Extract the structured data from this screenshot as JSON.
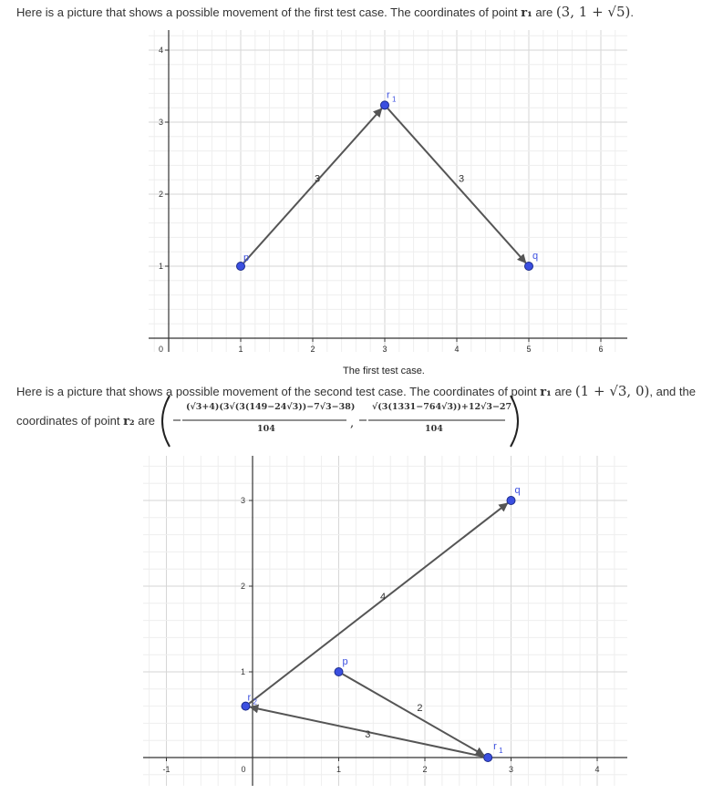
{
  "para1": {
    "text": "Here is a picture that shows a possible movement of the first test case. The coordinates of point ",
    "var": "r₁",
    "mid": " are ",
    "coords": "(3, 1 + √5)",
    "end": "."
  },
  "figure1": {
    "caption": "The first test case.",
    "x_ticks": [
      "1",
      "2",
      "3",
      "4",
      "5",
      "6"
    ],
    "y_ticks": [
      "1",
      "2",
      "3",
      "4"
    ],
    "origin_label": "0",
    "points": [
      {
        "name": "p",
        "x": 1,
        "y": 1
      },
      {
        "name": "r1",
        "x": 3,
        "y": 3.236
      },
      {
        "name": "q",
        "x": 5,
        "y": 1
      }
    ],
    "segments": [
      {
        "label": "3"
      },
      {
        "label": "3"
      }
    ],
    "point_labels": {
      "p": "p",
      "r1": "r",
      "r1_sub": "1",
      "q": "q"
    },
    "colors": {
      "point": "#3b4fe0",
      "segment": "#555555",
      "label": "#3b4fe0"
    }
  },
  "para2": {
    "line1_text": "Here is a picture that shows a possible movement of the second test case. The coordinates of point ",
    "line1_var": "r₁",
    "line1_mid": " are ",
    "line1_coords": "(1 + √3, 0)",
    "line1_end": ", and the",
    "line2_text": "coordinates of point ",
    "line2_var": "r₂",
    "line2_mid": " are",
    "num1": "(√3+4)(3√(3(149−24√3))−7√3−38)",
    "den1": "104",
    "num2": "√(3(1331−764√3))+12√3−27",
    "den2": "104"
  },
  "figure2": {
    "x_ticks": [
      "-1",
      "0",
      "1",
      "2",
      "3",
      "4"
    ],
    "y_ticks": [
      "1",
      "2",
      "3"
    ],
    "points": [
      {
        "name": "p",
        "x": 1,
        "y": 1
      },
      {
        "name": "r1",
        "x": 2.732,
        "y": 0
      },
      {
        "name": "r2",
        "x": -0.08,
        "y": 0.6
      },
      {
        "name": "q",
        "x": 3,
        "y": 3
      }
    ],
    "segments": [
      {
        "label": "2"
      },
      {
        "label": "3"
      },
      {
        "label": "4"
      }
    ],
    "point_labels": {
      "p": "p",
      "r1": "r",
      "r1_sub": "1",
      "r2": "r",
      "r2_sub": "2",
      "q": "q"
    },
    "colors": {
      "point": "#3b4fe0",
      "segment": "#555555",
      "label": "#3b4fe0"
    }
  }
}
